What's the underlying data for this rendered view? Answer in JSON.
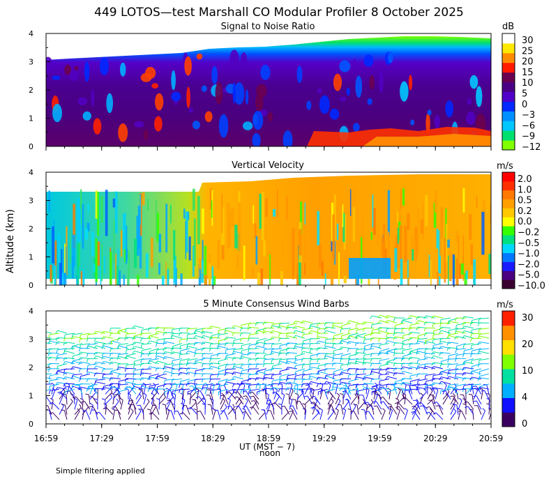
{
  "title": "449 LOTOS—test Marshall CO Modular Profiler  8 October 2025",
  "ylabel": "Altitude (km)",
  "xlabel": "UT  (MST − 7)",
  "noon_label": "noon",
  "footer": "Simple filtering applied",
  "x_ticks": [
    "16:59",
    "17:29",
    "17:59",
    "18:29",
    "18:59",
    "19:29",
    "19:59",
    "20:29",
    "20:59"
  ],
  "colors": {
    "snr": [
      "#7fff00",
      "#00e070",
      "#00c8ff",
      "#0090ff",
      "#0028ff",
      "#5000c8",
      "#4a0085",
      "#6a0050",
      "#ff1a00",
      "#ff8c00",
      "#ffe800",
      "#ffffff"
    ],
    "velocity": [
      "#3a0030",
      "#4a0080",
      "#1a1aff",
      "#0078ff",
      "#00d8ff",
      "#00e080",
      "#33ff00",
      "#ffff00",
      "#ffc800",
      "#ffa000",
      "#ff7800",
      "#ff3000",
      "#ff0000"
    ],
    "wind": [
      "#3a0060",
      "#1010ff",
      "#00b0ff",
      "#00e0a0",
      "#80ff00",
      "#ffe000",
      "#ff9000",
      "#ff2000"
    ]
  },
  "chart_data": [
    {
      "type": "heatmap",
      "title": "Signal to Noise Ratio",
      "units": "dB",
      "x": [
        "16:59",
        "17:29",
        "17:59",
        "18:29",
        "18:59",
        "19:29",
        "19:59",
        "20:29",
        "20:59"
      ],
      "ylim": [
        0,
        4
      ],
      "yticks": [
        "0",
        "1",
        "2",
        "3",
        "4"
      ],
      "colorbar_labels": [
        "30",
        "25",
        "20",
        "15",
        "10",
        "5",
        "0",
        "−3",
        "−6",
        "−9",
        "−12"
      ],
      "top_of_data_km": [
        3.2,
        3.35,
        3.4,
        3.45,
        3.6,
        3.65,
        3.8,
        3.85,
        3.8
      ]
    },
    {
      "type": "heatmap",
      "title": "Vertical Velocity",
      "units": "m/s",
      "x": [
        "16:59",
        "17:29",
        "17:59",
        "18:29",
        "18:59",
        "19:29",
        "19:59",
        "20:29",
        "20:59"
      ],
      "ylim": [
        0,
        4
      ],
      "yticks": [
        "0",
        "1",
        "2",
        "3",
        "4"
      ],
      "colorbar_labels": [
        "2.0",
        "1.0",
        "0.5",
        "0.2",
        "0.0",
        "−0.2",
        "−0.5",
        "−1.0",
        "−2.0",
        "−5.0",
        "−10.0"
      ],
      "top_of_data_km": [
        3.3,
        3.3,
        3.3,
        3.7,
        3.85,
        3.9,
        3.9,
        3.9,
        3.9
      ]
    },
    {
      "type": "scatter",
      "title": "5 Minute Consensus Wind Barbs",
      "units": "m/s",
      "x": [
        "16:59",
        "17:29",
        "17:59",
        "18:29",
        "18:59",
        "19:29",
        "19:59",
        "20:29",
        "20:59"
      ],
      "ylim": [
        0,
        4
      ],
      "yticks": [
        "0",
        "1",
        "2",
        "3",
        "4"
      ],
      "colorbar_labels": [
        "30",
        "20",
        "10",
        "4",
        "0"
      ]
    }
  ]
}
